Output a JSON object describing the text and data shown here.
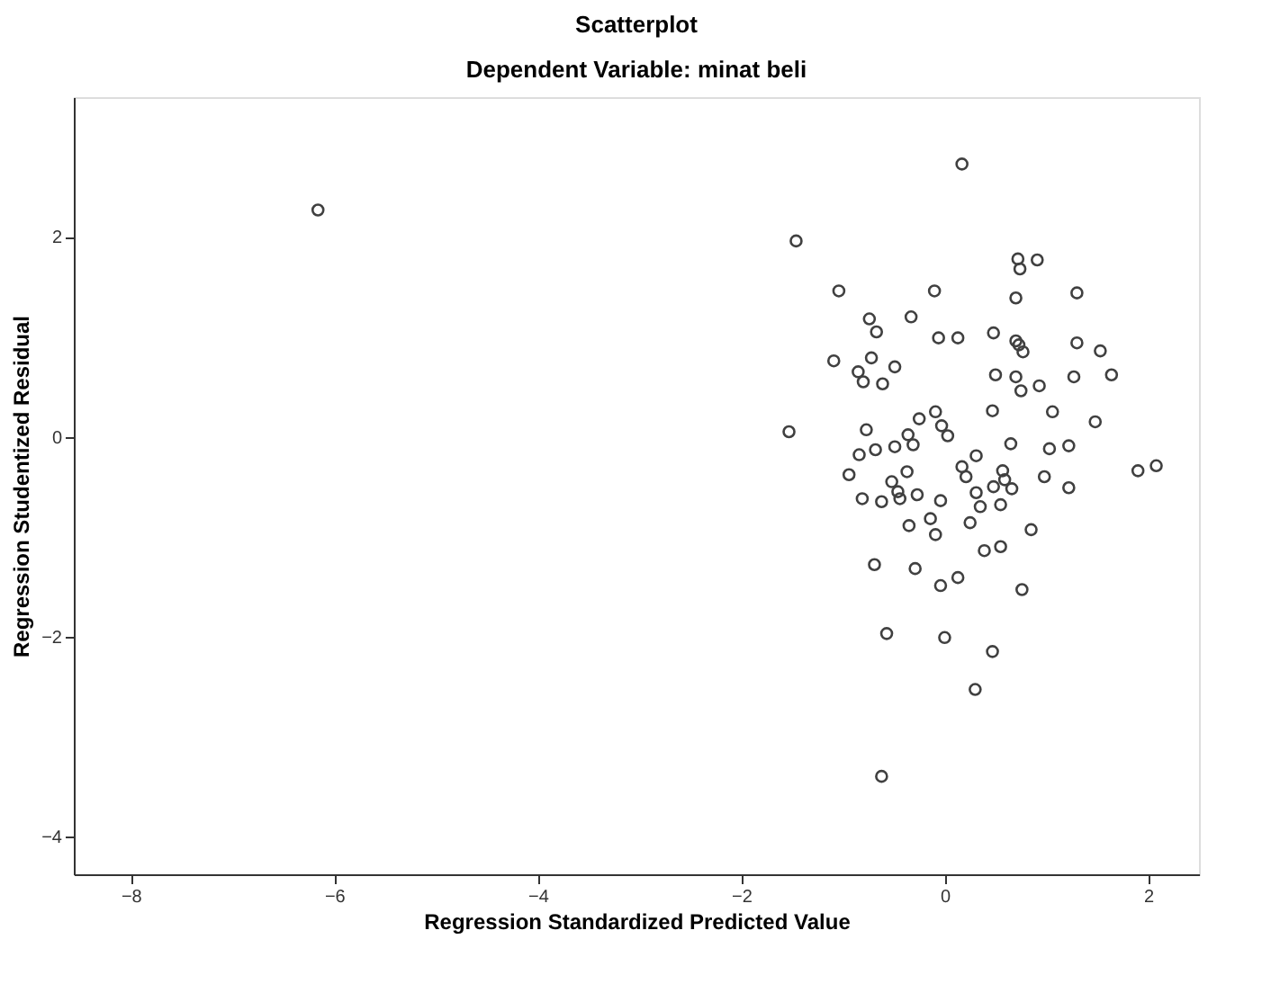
{
  "chart_data": {
    "type": "scatter",
    "title": "Scatterplot",
    "subtitle": "Dependent Variable: minat beli",
    "xlabel": "Regression Standardized Predicted Value",
    "ylabel": "Regression Studentized Residual",
    "xlim": [
      -8.56,
      2.5
    ],
    "ylim": [
      -4.38,
      3.4
    ],
    "xticks": [
      -8,
      -6,
      -4,
      -2,
      0,
      2
    ],
    "yticks": [
      -4,
      -2,
      0,
      2
    ],
    "grid": false,
    "marker": "circle",
    "series": [
      {
        "color": "#404040",
        "x": [
          -6.16,
          0.17,
          -1.46,
          0.72,
          0.91,
          0.74,
          -1.04,
          -0.1,
          0.7,
          1.3,
          -0.74,
          -0.33,
          -0.67,
          -0.06,
          0.13,
          0.48,
          0.7,
          0.73,
          0.77,
          1.3,
          1.53,
          -1.09,
          -0.72,
          -0.49,
          -0.85,
          -0.8,
          -0.61,
          0.5,
          0.7,
          0.75,
          0.93,
          1.27,
          1.64,
          0.47,
          1.06,
          -0.25,
          -0.09,
          -0.03,
          0.03,
          1.48,
          -1.53,
          -0.77,
          -0.84,
          -0.68,
          -0.49,
          -0.36,
          -0.31,
          0.31,
          0.65,
          1.03,
          1.22,
          1.9,
          2.08,
          -0.94,
          -0.52,
          -0.37,
          0.17,
          0.21,
          0.57,
          0.59,
          0.98,
          1.22,
          -0.81,
          -0.62,
          -0.44,
          -0.27,
          -0.46,
          -0.04,
          0.31,
          0.35,
          0.48,
          0.55,
          0.66,
          -0.35,
          -0.14,
          -0.09,
          0.25,
          0.85,
          0.39,
          0.55,
          -0.69,
          -0.29,
          -0.04,
          0.13,
          0.76,
          -0.57,
          0.0,
          0.47,
          0.3,
          -0.62
        ],
        "values": [
          2.27,
          2.73,
          1.96,
          1.78,
          1.77,
          1.68,
          1.46,
          1.46,
          1.39,
          1.44,
          1.18,
          1.2,
          1.05,
          0.99,
          0.99,
          1.04,
          0.96,
          0.92,
          0.85,
          0.94,
          0.86,
          0.76,
          0.79,
          0.7,
          0.65,
          0.55,
          0.53,
          0.62,
          0.6,
          0.46,
          0.51,
          0.6,
          0.62,
          0.26,
          0.25,
          0.18,
          0.25,
          0.11,
          0.01,
          0.15,
          0.05,
          0.07,
          -0.18,
          -0.13,
          -0.1,
          0.02,
          -0.08,
          -0.19,
          -0.07,
          -0.12,
          -0.09,
          -0.34,
          -0.29,
          -0.38,
          -0.45,
          -0.35,
          -0.3,
          -0.4,
          -0.34,
          -0.43,
          -0.4,
          -0.51,
          -0.62,
          -0.65,
          -0.62,
          -0.58,
          -0.55,
          -0.64,
          -0.56,
          -0.7,
          -0.5,
          -0.68,
          -0.52,
          -0.89,
          -0.82,
          -0.98,
          -0.86,
          -0.93,
          -1.14,
          -1.1,
          -1.28,
          -1.32,
          -1.49,
          -1.41,
          -1.53,
          -1.97,
          -2.01,
          -2.15,
          -2.53,
          -3.4
        ]
      }
    ]
  }
}
